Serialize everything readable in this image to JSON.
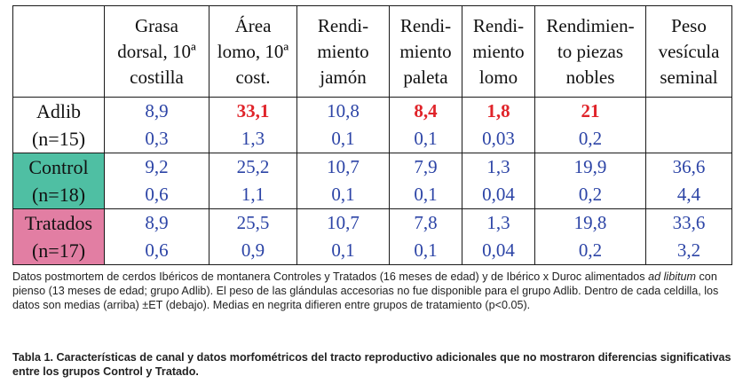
{
  "table": {
    "columns": [
      "Grasa dorsal, 10ª costilla",
      "Área lomo, 10ª cost.",
      "Rendi-miento jamón",
      "Rendi-miento paleta",
      "Rendi-miento lomo",
      "Rendimien-to piezas nobles",
      "Peso vesícula seminal"
    ],
    "column_lines": [
      [
        "Grasa",
        "dorsal, 10ª",
        "costilla"
      ],
      [
        "Área",
        "lomo, 10ª",
        "cost."
      ],
      [
        "Rendi-",
        "miento",
        "jamón"
      ],
      [
        "Rendi-",
        "miento",
        "paleta"
      ],
      [
        "Rendi-",
        "miento",
        "lomo"
      ],
      [
        "Rendimien-",
        "to piezas",
        "nobles"
      ],
      [
        "Peso",
        "vesícula",
        "seminal"
      ]
    ],
    "groups": [
      {
        "name": "Adlib",
        "n": "(n=15)",
        "color": "#ffffff",
        "means": [
          "8,9",
          "33,1",
          "10,8",
          "8,4",
          "1,8",
          "21",
          ""
        ],
        "errors": [
          "0,3",
          "1,3",
          "0,1",
          "0,1",
          "0,03",
          "0,2",
          ""
        ],
        "bold_means": [
          false,
          true,
          false,
          true,
          true,
          true,
          false
        ]
      },
      {
        "name": "Control",
        "n": "(n=18)",
        "color": "#4fbfa3",
        "means": [
          "9,2",
          "25,2",
          "10,7",
          "7,9",
          "1,3",
          "19,9",
          "36,6"
        ],
        "errors": [
          "0,6",
          "1,1",
          "0,1",
          "0,1",
          "0,04",
          "0,2",
          "4,4"
        ],
        "bold_means": [
          false,
          false,
          false,
          false,
          false,
          false,
          false
        ]
      },
      {
        "name": "Tratados",
        "n": "(n=17)",
        "color": "#e27ea3",
        "means": [
          "8,9",
          "25,5",
          "10,7",
          "7,8",
          "1,3",
          "19,8",
          "33,6"
        ],
        "errors": [
          "0,6",
          "0,9",
          "0,1",
          "0,1",
          "0,04",
          "0,2",
          "3,2"
        ],
        "bold_means": [
          false,
          false,
          false,
          false,
          false,
          false,
          false
        ]
      }
    ],
    "colors": {
      "value_text": "#2c44a6",
      "bold_value": "#e0242a",
      "separator_line": "#e3252b"
    }
  },
  "caption": {
    "part1": "Datos postmortem de cerdos Ibéricos de montanera Controles y Tratados (16 meses de edad) y de Ibérico x Duroc alimentados ",
    "italic": "ad libitum",
    "part2": " con pienso (13 meses de edad; grupo Adlib). El peso de las glándulas accesorias no fue disponible para el grupo Adlib. Dentro de cada celdilla, los datos son medias (arriba) ±ET (debajo). Medias en negrita difieren entre grupos de tratamiento (p<0.05)."
  },
  "title": "Tabla 1. Características de canal y datos morfométricos del tracto reproductivo adicionales que no mostraron diferencias significativas entre los grupos Control y Tratado."
}
